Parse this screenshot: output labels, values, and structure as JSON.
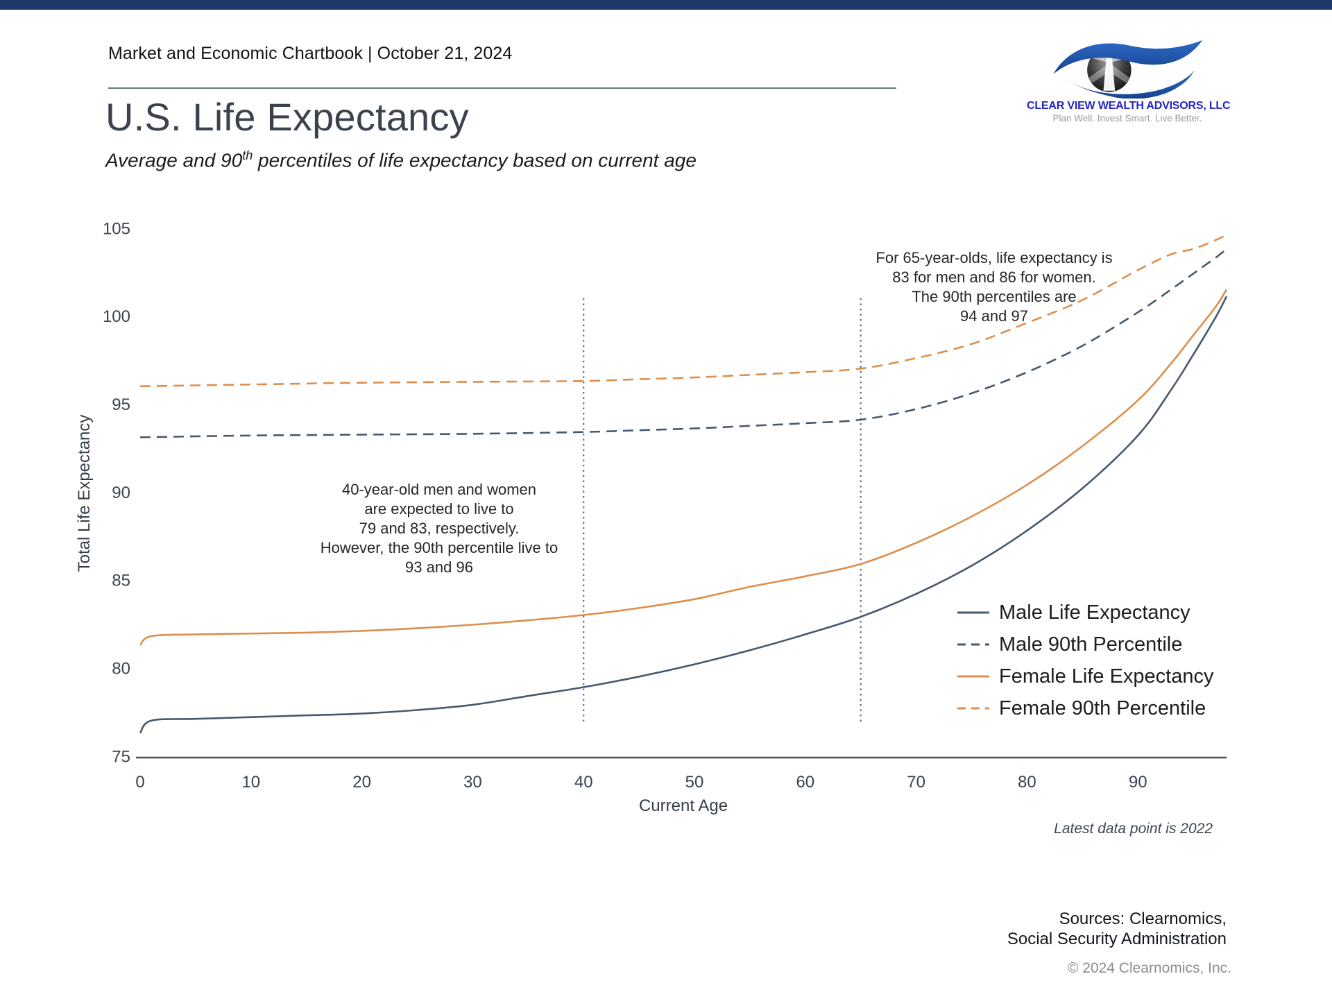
{
  "header": {
    "chartbook": "Market and Economic Chartbook | October 21, 2024"
  },
  "logo": {
    "brand": "CLEAR VIEW WEALTH ADVISORS, LLC",
    "tagline": "Plan Well. Invest Smart. Live Better.",
    "brand_color": "#2424c4",
    "eye_blue": "#1f55b0"
  },
  "title": "U.S. Life Expectancy",
  "subtitle": {
    "pre": "Average and 90",
    "sup": "th",
    "post": " percentiles of life expectancy based on current age"
  },
  "chart_data": {
    "type": "line",
    "xlabel": "Current Age",
    "ylabel": "Total Life Expectancy",
    "xlim": [
      0,
      98
    ],
    "ylim": [
      75,
      105
    ],
    "x_ticks": [
      0,
      10,
      20,
      30,
      40,
      50,
      60,
      70,
      80,
      90
    ],
    "y_ticks": [
      75,
      80,
      85,
      90,
      95,
      100,
      105
    ],
    "grid": false,
    "legend_position": "inside lower right",
    "series": [
      {
        "name": "Male Life Expectancy",
        "color": "#47586B",
        "dash": "solid",
        "points": [
          [
            0,
            76.4
          ],
          [
            1,
            77.1
          ],
          [
            5,
            77.2
          ],
          [
            10,
            77.3
          ],
          [
            15,
            77.4
          ],
          [
            20,
            77.5
          ],
          [
            25,
            77.7
          ],
          [
            30,
            78.0
          ],
          [
            35,
            78.5
          ],
          [
            40,
            79.0
          ],
          [
            45,
            79.6
          ],
          [
            50,
            80.3
          ],
          [
            55,
            81.1
          ],
          [
            60,
            82.0
          ],
          [
            65,
            83.0
          ],
          [
            70,
            84.3
          ],
          [
            75,
            85.9
          ],
          [
            80,
            87.9
          ],
          [
            85,
            90.3
          ],
          [
            90,
            93.3
          ],
          [
            93,
            95.9
          ],
          [
            95,
            97.9
          ],
          [
            97,
            100.0
          ],
          [
            98,
            101.2
          ]
        ]
      },
      {
        "name": "Male 90th Percentile",
        "color": "#47586B",
        "dash": "dashed",
        "points": [
          [
            0,
            93.2
          ],
          [
            10,
            93.3
          ],
          [
            20,
            93.35
          ],
          [
            30,
            93.4
          ],
          [
            40,
            93.5
          ],
          [
            45,
            93.6
          ],
          [
            50,
            93.7
          ],
          [
            55,
            93.85
          ],
          [
            60,
            94.0
          ],
          [
            65,
            94.2
          ],
          [
            70,
            94.8
          ],
          [
            75,
            95.7
          ],
          [
            80,
            96.9
          ],
          [
            85,
            98.4
          ],
          [
            90,
            100.3
          ],
          [
            93,
            101.6
          ],
          [
            95,
            102.5
          ],
          [
            97,
            103.4
          ],
          [
            98,
            103.9
          ]
        ]
      },
      {
        "name": "Female Life Expectancy",
        "color": "#DD8E4C",
        "dash": "solid",
        "points": [
          [
            0,
            81.4
          ],
          [
            1,
            81.9
          ],
          [
            5,
            82.0
          ],
          [
            10,
            82.05
          ],
          [
            15,
            82.1
          ],
          [
            20,
            82.2
          ],
          [
            25,
            82.35
          ],
          [
            30,
            82.55
          ],
          [
            35,
            82.8
          ],
          [
            40,
            83.1
          ],
          [
            45,
            83.5
          ],
          [
            50,
            84.0
          ],
          [
            55,
            84.7
          ],
          [
            60,
            85.3
          ],
          [
            65,
            86.0
          ],
          [
            70,
            87.2
          ],
          [
            75,
            88.7
          ],
          [
            80,
            90.5
          ],
          [
            85,
            92.7
          ],
          [
            90,
            95.3
          ],
          [
            93,
            97.4
          ],
          [
            95,
            99.0
          ],
          [
            97,
            100.6
          ],
          [
            98,
            101.6
          ]
        ]
      },
      {
        "name": "Female 90th Percentile",
        "color": "#DD8E4C",
        "dash": "dashed",
        "points": [
          [
            0,
            96.1
          ],
          [
            10,
            96.2
          ],
          [
            20,
            96.3
          ],
          [
            30,
            96.35
          ],
          [
            40,
            96.4
          ],
          [
            45,
            96.5
          ],
          [
            50,
            96.6
          ],
          [
            55,
            96.75
          ],
          [
            60,
            96.9
          ],
          [
            65,
            97.1
          ],
          [
            70,
            97.7
          ],
          [
            75,
            98.5
          ],
          [
            80,
            99.7
          ],
          [
            85,
            101.0
          ],
          [
            90,
            102.7
          ],
          [
            93,
            103.6
          ],
          [
            95,
            103.9
          ],
          [
            97,
            104.4
          ],
          [
            98,
            104.7
          ]
        ]
      }
    ],
    "reference_lines": [
      {
        "x": 40
      },
      {
        "x": 65
      }
    ],
    "annotations": [
      {
        "at_age": 40,
        "text": "40-year-old men and women\nare expected to live to\n79 and 83, respectively.\nHowever, the 90th percentile live to\n93 and 96"
      },
      {
        "at_age": 65,
        "text": "For 65-year-olds, life expectancy is\n83 for men and 86 for women.\nThe 90th percentiles are\n94 and 97"
      }
    ],
    "note": "Latest data point is 2022"
  },
  "footer": {
    "sources": "Sources: Clearnomics,\nSocial Security Administration",
    "copyright": "© 2024 Clearnomics, Inc."
  }
}
